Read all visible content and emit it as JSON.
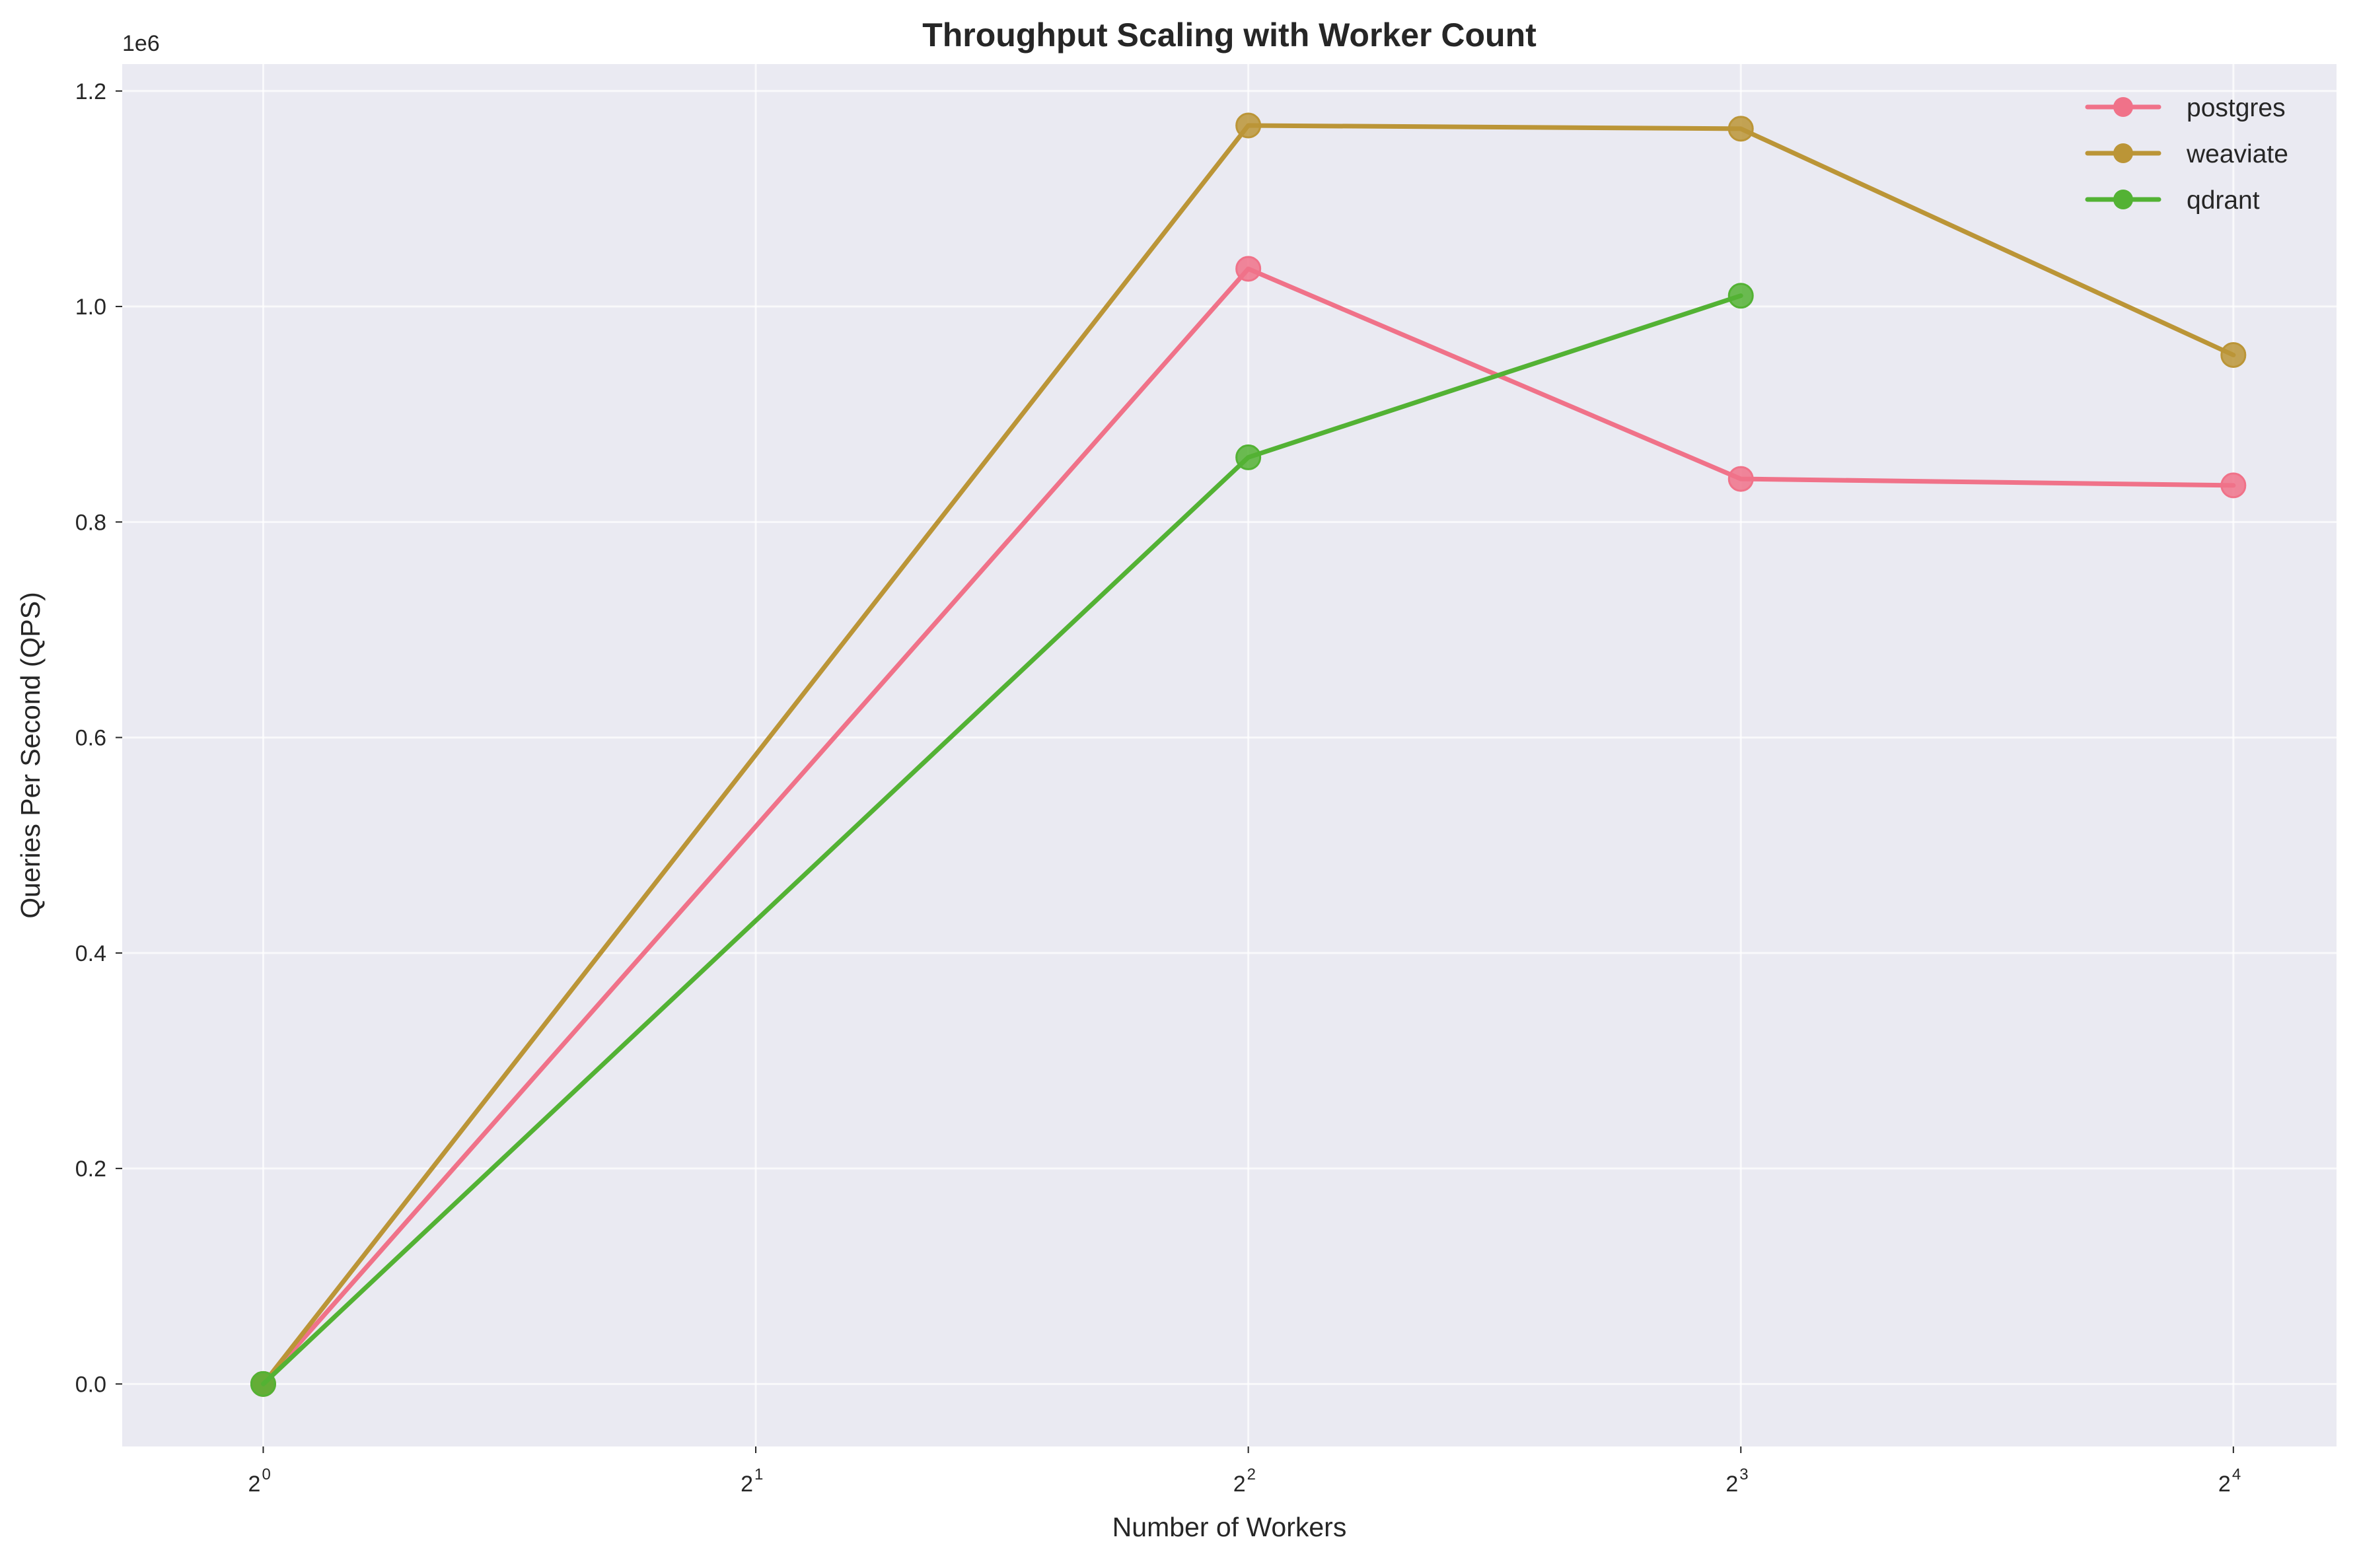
{
  "chart_data": {
    "type": "line",
    "title": "Throughput Scaling with Worker Count",
    "xlabel": "Number of Workers",
    "ylabel": "Queries Per Second (QPS)",
    "x_scale": "log2",
    "xlim": [
      0.82,
      18.5
    ],
    "ylim": [
      -58000,
      1225000
    ],
    "x_ticks": [
      {
        "value": 1,
        "base": "2",
        "exp": "0"
      },
      {
        "value": 2,
        "base": "2",
        "exp": "1"
      },
      {
        "value": 4,
        "base": "2",
        "exp": "2"
      },
      {
        "value": 8,
        "base": "2",
        "exp": "3"
      },
      {
        "value": 16,
        "base": "2",
        "exp": "4"
      }
    ],
    "y_ticks": [
      {
        "value": 0,
        "label": "0.0"
      },
      {
        "value": 200000,
        "label": "0.2"
      },
      {
        "value": 400000,
        "label": "0.4"
      },
      {
        "value": 600000,
        "label": "0.6"
      },
      {
        "value": 800000,
        "label": "0.8"
      },
      {
        "value": 1000000,
        "label": "1.0"
      },
      {
        "value": 1200000,
        "label": "1.2"
      }
    ],
    "y_offset_label": "1e6",
    "grid": true,
    "legend_position": "top-right",
    "series": [
      {
        "name": "postgres",
        "color": "#f07289",
        "x": [
          1,
          4,
          8,
          16
        ],
        "y": [
          0,
          1035000,
          840000,
          834000
        ]
      },
      {
        "name": "weaviate",
        "color": "#bb9537",
        "x": [
          1,
          4,
          8,
          16
        ],
        "y": [
          0,
          1168000,
          1165000,
          955000
        ]
      },
      {
        "name": "qdrant",
        "color": "#53b234",
        "x": [
          1,
          4,
          8
        ],
        "y": [
          0,
          860000,
          1010000
        ]
      }
    ]
  }
}
